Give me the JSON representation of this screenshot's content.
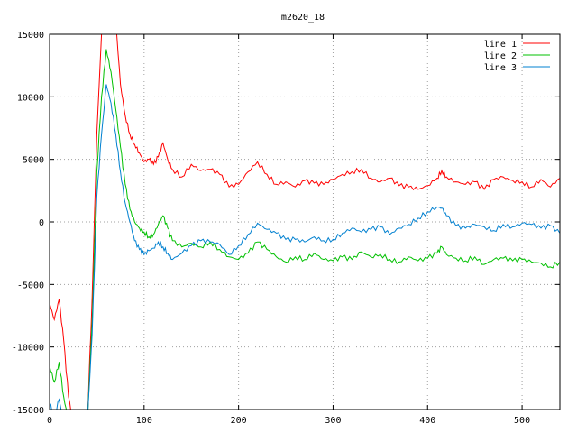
{
  "chart_data": {
    "type": "line",
    "title": "m2620_18",
    "xlabel": "",
    "ylabel": "",
    "xlim": [
      0,
      540
    ],
    "ylim": [
      -15000,
      15000
    ],
    "x_ticks": [
      0,
      100,
      200,
      300,
      400,
      500
    ],
    "y_ticks": [
      -15000,
      -10000,
      -5000,
      0,
      5000,
      10000,
      15000
    ],
    "x_tick_labels": [
      "0",
      "100",
      "200",
      "300",
      "400",
      "500"
    ],
    "y_tick_labels": [
      "-15000",
      "-10000",
      "-5000",
      "0",
      "5000",
      "10000",
      "15000"
    ],
    "grid": true,
    "legend_position": "top-right",
    "series": [
      {
        "name": "line 1",
        "color": "#ff0000",
        "x": [
          0,
          5,
          10,
          15,
          20,
          25,
          30,
          35,
          40,
          45,
          50,
          55,
          60,
          65,
          70,
          75,
          80,
          85,
          90,
          95,
          100,
          105,
          110,
          115,
          120,
          125,
          130,
          140,
          150,
          160,
          170,
          180,
          190,
          200,
          210,
          220,
          230,
          240,
          250,
          260,
          270,
          280,
          290,
          300,
          310,
          320,
          330,
          340,
          350,
          360,
          370,
          380,
          390,
          400,
          410,
          415,
          420,
          430,
          440,
          450,
          460,
          470,
          480,
          490,
          500,
          510,
          520,
          530,
          540
        ],
        "y": [
          -6500,
          -7800,
          -6200,
          -9500,
          -14000,
          -16000,
          -16000,
          -16000,
          -16000,
          -6000,
          7000,
          15000,
          16000,
          16000,
          16000,
          11000,
          8500,
          7000,
          6200,
          5500,
          4800,
          5000,
          4600,
          5200,
          6300,
          5000,
          4200,
          3600,
          4600,
          4100,
          4200,
          3800,
          2800,
          3000,
          4000,
          4800,
          3800,
          3000,
          3200,
          2800,
          3300,
          3100,
          3000,
          3400,
          3800,
          4000,
          4200,
          3500,
          3200,
          3500,
          2900,
          2800,
          2600,
          2900,
          3500,
          4100,
          3600,
          3200,
          3000,
          3200,
          2600,
          3400,
          3600,
          3300,
          3200,
          2800,
          3400,
          2800,
          3500
        ]
      },
      {
        "name": "line 2",
        "color": "#00c000",
        "x": [
          0,
          5,
          10,
          15,
          20,
          25,
          30,
          35,
          40,
          45,
          50,
          55,
          60,
          65,
          70,
          75,
          80,
          85,
          90,
          95,
          100,
          105,
          110,
          115,
          120,
          125,
          130,
          140,
          150,
          160,
          170,
          180,
          190,
          200,
          210,
          220,
          230,
          240,
          250,
          260,
          270,
          280,
          290,
          300,
          310,
          320,
          330,
          340,
          350,
          360,
          370,
          380,
          390,
          400,
          410,
          415,
          420,
          430,
          440,
          450,
          460,
          470,
          480,
          490,
          500,
          510,
          520,
          530,
          540
        ],
        "y": [
          -11500,
          -12800,
          -11200,
          -14000,
          -16000,
          -16000,
          -16000,
          -16000,
          -16000,
          -8000,
          4000,
          10000,
          13800,
          12000,
          9000,
          6000,
          3000,
          1000,
          0,
          -500,
          -800,
          -1200,
          -1000,
          -200,
          500,
          -500,
          -1500,
          -2000,
          -1700,
          -2000,
          -1600,
          -2200,
          -2800,
          -3000,
          -2500,
          -1600,
          -2200,
          -2800,
          -3200,
          -2800,
          -3000,
          -2500,
          -3000,
          -3100,
          -2800,
          -3000,
          -2400,
          -2800,
          -2600,
          -3000,
          -3200,
          -2800,
          -3100,
          -2900,
          -2500,
          -2000,
          -2600,
          -2900,
          -3100,
          -2800,
          -3400,
          -3000,
          -2900,
          -3100,
          -3000,
          -3200,
          -3300,
          -3600,
          -3200
        ]
      },
      {
        "name": "line 3",
        "color": "#0080d0",
        "x": [
          0,
          5,
          10,
          15,
          20,
          25,
          30,
          35,
          40,
          45,
          50,
          55,
          60,
          65,
          70,
          75,
          80,
          85,
          90,
          95,
          100,
          105,
          110,
          115,
          120,
          125,
          130,
          140,
          150,
          160,
          170,
          180,
          190,
          200,
          210,
          220,
          230,
          240,
          250,
          260,
          270,
          280,
          290,
          300,
          310,
          320,
          330,
          340,
          350,
          360,
          370,
          380,
          390,
          400,
          410,
          415,
          420,
          430,
          440,
          450,
          460,
          470,
          480,
          490,
          500,
          510,
          520,
          530,
          540
        ],
        "y": [
          -14500,
          -15500,
          -14200,
          -16000,
          -16000,
          -16000,
          -16000,
          -16000,
          -16000,
          -9000,
          2000,
          7000,
          11000,
          9500,
          7000,
          4000,
          1500,
          0,
          -1500,
          -2200,
          -2600,
          -2300,
          -2100,
          -1600,
          -2000,
          -2500,
          -3000,
          -2500,
          -1900,
          -1500,
          -1600,
          -1800,
          -2600,
          -1900,
          -1000,
          -100,
          -600,
          -900,
          -1400,
          -1400,
          -1600,
          -1200,
          -1500,
          -1400,
          -900,
          -500,
          -800,
          -600,
          -400,
          -1000,
          -500,
          -200,
          300,
          800,
          1200,
          1100,
          500,
          -300,
          -500,
          -200,
          -400,
          -700,
          -200,
          -400,
          -100,
          -200,
          -500,
          -300,
          -900
        ]
      }
    ]
  }
}
